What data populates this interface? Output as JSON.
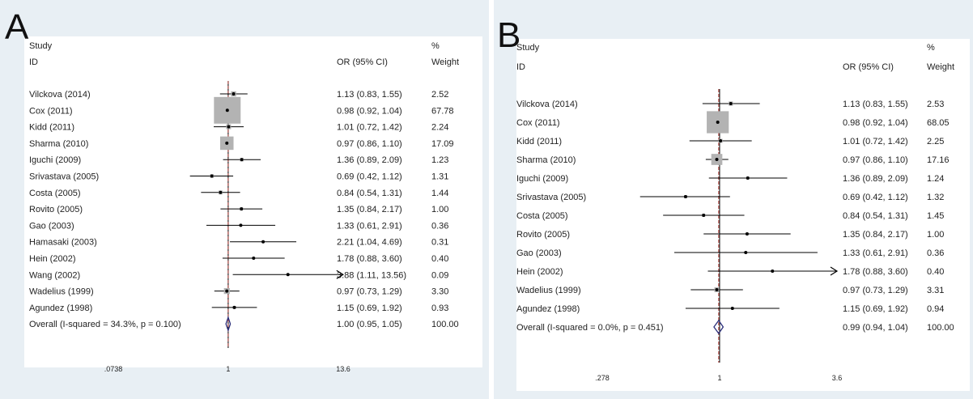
{
  "chart_data": [
    {
      "type": "forest",
      "panel_label": "A",
      "headers": {
        "study_1": "Study",
        "study_2": "ID",
        "or": "OR (95% CI)",
        "weight_1": "%",
        "weight_2": "Weight"
      },
      "xscale": "log",
      "xticks": [
        {
          "value": 0.0738,
          "label": ".0738"
        },
        {
          "value": 1,
          "label": "1"
        },
        {
          "value": 13.6,
          "label": "13.6"
        }
      ],
      "xlim": [
        0.0738,
        13.6
      ],
      "null_line": 1,
      "summary_line": 1.0,
      "studies": [
        {
          "name": "Vilckova (2014)",
          "or": 1.13,
          "lo": 0.83,
          "hi": 1.55,
          "or_text": "1.13 (0.83, 1.55)",
          "weight": 2.52,
          "weight_text": "2.52"
        },
        {
          "name": "Cox (2011)",
          "or": 0.98,
          "lo": 0.92,
          "hi": 1.04,
          "or_text": "0.98 (0.92, 1.04)",
          "weight": 67.78,
          "weight_text": "67.78"
        },
        {
          "name": "Kidd (2011)",
          "or": 1.01,
          "lo": 0.72,
          "hi": 1.42,
          "or_text": "1.01 (0.72, 1.42)",
          "weight": 2.24,
          "weight_text": "2.24"
        },
        {
          "name": "Sharma (2010)",
          "or": 0.97,
          "lo": 0.86,
          "hi": 1.1,
          "or_text": "0.97 (0.86, 1.10)",
          "weight": 17.09,
          "weight_text": "17.09"
        },
        {
          "name": "Iguchi  (2009)",
          "or": 1.36,
          "lo": 0.89,
          "hi": 2.09,
          "or_text": "1.36 (0.89, 2.09)",
          "weight": 1.23,
          "weight_text": "1.23"
        },
        {
          "name": "Srivastava (2005)",
          "or": 0.69,
          "lo": 0.42,
          "hi": 1.12,
          "or_text": "0.69 (0.42, 1.12)",
          "weight": 1.31,
          "weight_text": "1.31"
        },
        {
          "name": "Costa (2005)",
          "or": 0.84,
          "lo": 0.54,
          "hi": 1.31,
          "or_text": "0.84 (0.54, 1.31)",
          "weight": 1.44,
          "weight_text": "1.44"
        },
        {
          "name": "Rovito  (2005)",
          "or": 1.35,
          "lo": 0.84,
          "hi": 2.17,
          "or_text": "1.35 (0.84, 2.17)",
          "weight": 1.0,
          "weight_text": "1.00"
        },
        {
          "name": "Gao  (2003)",
          "or": 1.33,
          "lo": 0.61,
          "hi": 2.91,
          "or_text": "1.33 (0.61, 2.91)",
          "weight": 0.36,
          "weight_text": "0.36"
        },
        {
          "name": "Hamasaki  (2003)",
          "or": 2.21,
          "lo": 1.04,
          "hi": 4.69,
          "or_text": "2.21 (1.04, 4.69)",
          "weight": 0.31,
          "weight_text": "0.31"
        },
        {
          "name": "Hein  (2002)",
          "or": 1.78,
          "lo": 0.88,
          "hi": 3.6,
          "or_text": "1.78 (0.88, 3.60)",
          "weight": 0.4,
          "weight_text": "0.40"
        },
        {
          "name": "Wang  (2002)",
          "or": 3.88,
          "lo": 1.11,
          "hi": 13.56,
          "or_text": "3.88 (1.11, 13.56)",
          "weight": 0.09,
          "weight_text": "0.09",
          "arrow_right": true
        },
        {
          "name": "Wadelius (1999)",
          "or": 0.97,
          "lo": 0.73,
          "hi": 1.29,
          "or_text": "0.97 (0.73, 1.29)",
          "weight": 3.3,
          "weight_text": "3.30"
        },
        {
          "name": "Agundez  (1998)",
          "or": 1.15,
          "lo": 0.69,
          "hi": 1.92,
          "or_text": "1.15 (0.69, 1.92)",
          "weight": 0.93,
          "weight_text": "0.93"
        }
      ],
      "overall": {
        "name": "Overall  (I-squared = 34.3%, p = 0.100)",
        "or": 1.0,
        "lo": 0.95,
        "hi": 1.05,
        "or_text": "1.00 (0.95, 1.05)",
        "weight_text": "100.00"
      }
    },
    {
      "type": "forest",
      "panel_label": "B",
      "headers": {
        "study_1": "Study",
        "study_2": "ID",
        "or": "OR (95% CI)",
        "weight_1": "%",
        "weight_2": "Weight"
      },
      "xscale": "log",
      "xticks": [
        {
          "value": 0.278,
          "label": ".278"
        },
        {
          "value": 1,
          "label": "1"
        },
        {
          "value": 3.6,
          "label": "3.6"
        }
      ],
      "xlim": [
        0.278,
        3.6
      ],
      "null_line": 1,
      "summary_line": 0.99,
      "studies": [
        {
          "name": "Vilckova (2014)",
          "or": 1.13,
          "lo": 0.83,
          "hi": 1.55,
          "or_text": "1.13 (0.83, 1.55)",
          "weight": 2.53,
          "weight_text": "2.53"
        },
        {
          "name": "Cox (2011)",
          "or": 0.98,
          "lo": 0.92,
          "hi": 1.04,
          "or_text": "0.98 (0.92, 1.04)",
          "weight": 68.05,
          "weight_text": "68.05"
        },
        {
          "name": "Kidd (2011)",
          "or": 1.01,
          "lo": 0.72,
          "hi": 1.42,
          "or_text": "1.01 (0.72, 1.42)",
          "weight": 2.25,
          "weight_text": "2.25"
        },
        {
          "name": "Sharma (2010)",
          "or": 0.97,
          "lo": 0.86,
          "hi": 1.1,
          "or_text": "0.97 (0.86, 1.10)",
          "weight": 17.16,
          "weight_text": "17.16"
        },
        {
          "name": "Iguchi  (2009)",
          "or": 1.36,
          "lo": 0.89,
          "hi": 2.09,
          "or_text": "1.36 (0.89, 2.09)",
          "weight": 1.24,
          "weight_text": "1.24"
        },
        {
          "name": "Srivastava (2005)",
          "or": 0.69,
          "lo": 0.42,
          "hi": 1.12,
          "or_text": "0.69 (0.42, 1.12)",
          "weight": 1.32,
          "weight_text": "1.32"
        },
        {
          "name": "Costa (2005)",
          "or": 0.84,
          "lo": 0.54,
          "hi": 1.31,
          "or_text": "0.84 (0.54, 1.31)",
          "weight": 1.45,
          "weight_text": "1.45"
        },
        {
          "name": "Rovito  (2005)",
          "or": 1.35,
          "lo": 0.84,
          "hi": 2.17,
          "or_text": "1.35 (0.84, 2.17)",
          "weight": 1.0,
          "weight_text": "1.00"
        },
        {
          "name": "Gao  (2003)",
          "or": 1.33,
          "lo": 0.61,
          "hi": 2.91,
          "or_text": "1.33 (0.61, 2.91)",
          "weight": 0.36,
          "weight_text": "0.36"
        },
        {
          "name": "Hein (2002)",
          "or": 1.78,
          "lo": 0.88,
          "hi": 3.6,
          "or_text": "1.78 (0.88, 3.60)",
          "weight": 0.4,
          "weight_text": "0.40",
          "arrow_right": true
        },
        {
          "name": "Wadelius (1999)",
          "or": 0.97,
          "lo": 0.73,
          "hi": 1.29,
          "or_text": "0.97 (0.73, 1.29)",
          "weight": 3.31,
          "weight_text": "3.31"
        },
        {
          "name": "Agundez (1998)",
          "or": 1.15,
          "lo": 0.69,
          "hi": 1.92,
          "or_text": "1.15 (0.69, 1.92)",
          "weight": 0.94,
          "weight_text": "0.94"
        }
      ],
      "overall": {
        "name": "Overall  (I-squared = 0.0%, p = 0.451)",
        "or": 0.99,
        "lo": 0.94,
        "hi": 1.04,
        "or_text": "0.99 (0.94, 1.04)",
        "weight_text": "100.00"
      }
    }
  ],
  "colors": {
    "panel_bg": "#e8eff4",
    "plot_bg": "#ffffff",
    "weight_box": "#b3b3b3",
    "diamond": "#2b2f7a",
    "summary_line": "#b0403a",
    "text": "#222222"
  }
}
